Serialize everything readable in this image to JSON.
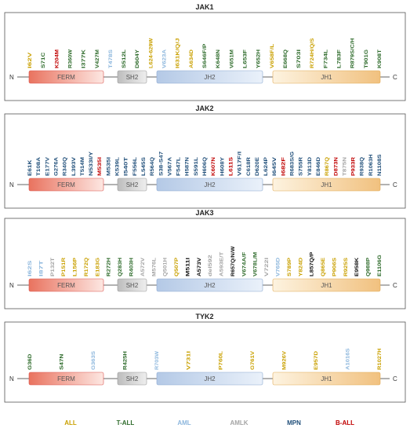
{
  "colors": {
    "ALL": "#c9a000",
    "T-ALL": "#2e6b2b",
    "AML": "#8db7dd",
    "AMLK": "#a5a5a5",
    "MPN": "#1f4e79",
    "B-ALL": "#c00000",
    "black": "#111111"
  },
  "legend": [
    {
      "label": "ALL",
      "color_key": "ALL"
    },
    {
      "label": "T-ALL",
      "color_key": "T-ALL"
    },
    {
      "label": "AML",
      "color_key": "AML"
    },
    {
      "label": "AMLK",
      "color_key": "AMLK"
    },
    {
      "label": "MPN",
      "color_key": "MPN"
    },
    {
      "label": "B-ALL",
      "color_key": "B-ALL"
    }
  ],
  "proteins": [
    {
      "name": "JAK1",
      "n_label": "N",
      "c_label": "C",
      "domains": [
        "FERM",
        "SH2",
        "JH2",
        "JH1"
      ],
      "mutations": [
        {
          "t": "I62V",
          "c": "ALL"
        },
        {
          "t": "S71C",
          "c": "T-ALL"
        },
        {
          "t": "K204M",
          "c": "B-ALL"
        },
        {
          "t": "R360W",
          "c": "T-ALL"
        },
        {
          "t": "I377K",
          "c": "T-ALL"
        },
        {
          "t": "V427M",
          "c": "T-ALL"
        },
        {
          "t": "T478S",
          "c": "AML"
        },
        {
          "t": "S512L",
          "c": "T-ALL"
        },
        {
          "t": "D604Y",
          "c": "T-ALL"
        },
        {
          "t": "L624-629W",
          "c": "ALL"
        },
        {
          "t": "V623A",
          "c": "AML"
        },
        {
          "t": "I631K/Q/J",
          "c": "ALL"
        },
        {
          "t": "A634D",
          "c": "ALL"
        },
        {
          "t": "S646F/P",
          "c": "T-ALL"
        },
        {
          "t": "K648N",
          "c": "T-ALL"
        },
        {
          "t": "V651M",
          "c": "T-ALL"
        },
        {
          "t": "L653F",
          "c": "T-ALL"
        },
        {
          "t": "Y652H",
          "c": "T-ALL"
        },
        {
          "t": "V658F/L",
          "c": "ALL"
        },
        {
          "t": "E668Q",
          "c": "T-ALL"
        },
        {
          "t": "S703I",
          "c": "T-ALL"
        },
        {
          "t": "R724H/Q/S",
          "c": "ALL"
        },
        {
          "t": "F734L",
          "c": "T-ALL"
        },
        {
          "t": "L783F",
          "c": "T-ALL"
        },
        {
          "t": "R879S/C/H",
          "c": "T-ALL"
        },
        {
          "t": "T901G",
          "c": "T-ALL"
        },
        {
          "t": "K908T",
          "c": "T-ALL"
        }
      ]
    },
    {
      "name": "JAK2",
      "n_label": "N",
      "c_label": "C",
      "domains": [
        "FERM",
        "SH2",
        "JH2",
        "JH1"
      ],
      "mutations": [
        {
          "t": "E61K",
          "c": "MPN"
        },
        {
          "t": "T108A",
          "c": "MPN"
        },
        {
          "t": "E177V",
          "c": "MPN"
        },
        {
          "t": "G276A",
          "c": "MPN"
        },
        {
          "t": "R340Q",
          "c": "MPN"
        },
        {
          "t": "L393V",
          "c": "MPN"
        },
        {
          "t": "T514M",
          "c": "MPN"
        },
        {
          "t": "N533I/Y",
          "c": "MPN"
        },
        {
          "t": "M535I",
          "c": "B-ALL"
        },
        {
          "t": "M535I",
          "c": "MPN"
        },
        {
          "t": "K539L",
          "c": "MPN"
        },
        {
          "t": "I540T",
          "c": "MPN"
        },
        {
          "t": "F556L",
          "c": "MPN"
        },
        {
          "t": "L545S",
          "c": "MPN"
        },
        {
          "t": "R564Q",
          "c": "MPN"
        },
        {
          "t": "S38-S47",
          "c": "MPN"
        },
        {
          "t": "V567A",
          "c": "MPN"
        },
        {
          "t": "F547L",
          "c": "MPN"
        },
        {
          "t": "H587N",
          "c": "MPN"
        },
        {
          "t": "S591L",
          "c": "MPN"
        },
        {
          "t": "H606Q",
          "c": "MPN"
        },
        {
          "t": "K607N",
          "c": "B-ALL"
        },
        {
          "t": "H608Y",
          "c": "MPN"
        },
        {
          "t": "L611S",
          "c": "B-ALL"
        },
        {
          "t": "V617F/I",
          "c": "MPN"
        },
        {
          "t": "C618R",
          "c": "MPN"
        },
        {
          "t": "D620E",
          "c": "MPN"
        },
        {
          "t": "L624P",
          "c": "MPN"
        },
        {
          "t": "I645V",
          "c": "MPN"
        },
        {
          "t": "I682F",
          "c": "B-ALL"
        },
        {
          "t": "R683S/G",
          "c": "MPN"
        },
        {
          "t": "S755R",
          "c": "MPN"
        },
        {
          "t": "Y813D",
          "c": "MPN"
        },
        {
          "t": "E846D",
          "c": "MPN"
        },
        {
          "t": "R867Q",
          "c": "ALL"
        },
        {
          "t": "D873N",
          "c": "B-ALL"
        },
        {
          "t": "T875N",
          "c": "AMLK"
        },
        {
          "t": "P933R",
          "c": "B-ALL"
        },
        {
          "t": "R938Q",
          "c": "MPN"
        },
        {
          "t": "R1063H",
          "c": "MPN"
        },
        {
          "t": "N1108S",
          "c": "MPN"
        }
      ]
    },
    {
      "name": "JAK3",
      "n_label": "N",
      "c_label": "C",
      "domains": [
        "FERM",
        "SH2",
        "JH2",
        "JH1"
      ],
      "mutations": [
        {
          "t": "I62S",
          "c": "AML"
        },
        {
          "t": "I87T",
          "c": "AML"
        },
        {
          "t": "P132T",
          "c": "AMLK"
        },
        {
          "t": "P151R",
          "c": "ALL"
        },
        {
          "t": "L156P",
          "c": "ALL"
        },
        {
          "t": "R172Q",
          "c": "ALL"
        },
        {
          "t": "E183G",
          "c": "ALL"
        },
        {
          "t": "R272H",
          "c": "T-ALL"
        },
        {
          "t": "Q283H",
          "c": "T-ALL"
        },
        {
          "t": "R403H",
          "c": "T-ALL"
        },
        {
          "t": "A572V",
          "c": "AMLK"
        },
        {
          "t": "M576L",
          "c": "AMLK"
        },
        {
          "t": "Q501H",
          "c": "AMLK"
        },
        {
          "t": "Q507P",
          "c": "ALL"
        },
        {
          "t": "M511I",
          "c": "black"
        },
        {
          "t": "A573V",
          "c": "black"
        },
        {
          "t": "del592",
          "c": "AMLK"
        },
        {
          "t": "A593E/T",
          "c": "AMLK"
        },
        {
          "t": "R657Q/N/W",
          "c": "black"
        },
        {
          "t": "V674A/F",
          "c": "T-ALL"
        },
        {
          "t": "V678L/M",
          "c": "T-ALL"
        },
        {
          "t": "V722I",
          "c": "AMLK"
        },
        {
          "t": "V765D",
          "c": "AML"
        },
        {
          "t": "S789P",
          "c": "ALL"
        },
        {
          "t": "Y824D",
          "c": "ALL"
        },
        {
          "t": "L857Q/P",
          "c": "black"
        },
        {
          "t": "Q865E",
          "c": "ALL"
        },
        {
          "t": "P906S",
          "c": "ALL"
        },
        {
          "t": "R925S",
          "c": "ALL"
        },
        {
          "t": "E958K",
          "c": "black"
        },
        {
          "t": "Q988P",
          "c": "T-ALL"
        },
        {
          "t": "E1106G",
          "c": "T-ALL"
        }
      ]
    },
    {
      "name": "TYK2",
      "n_label": "N",
      "c_label": "C",
      "domains": [
        "FERM",
        "SH2",
        "JH2",
        "JH1"
      ],
      "mutations": [
        {
          "t": "G36D",
          "c": "T-ALL"
        },
        {
          "t": "S47N",
          "c": "T-ALL"
        },
        {
          "t": "G363S",
          "c": "AML"
        },
        {
          "t": "R425H",
          "c": "T-ALL"
        },
        {
          "t": "R703W",
          "c": "AML"
        },
        {
          "t": "V731I",
          "c": "ALL"
        },
        {
          "t": "P760L",
          "c": "ALL"
        },
        {
          "t": "G761V",
          "c": "ALL"
        },
        {
          "t": "M926V",
          "c": "ALL"
        },
        {
          "t": "E957D",
          "c": "ALL"
        },
        {
          "t": "A1016S",
          "c": "AML"
        },
        {
          "t": "R1027H",
          "c": "ALL"
        }
      ]
    }
  ]
}
